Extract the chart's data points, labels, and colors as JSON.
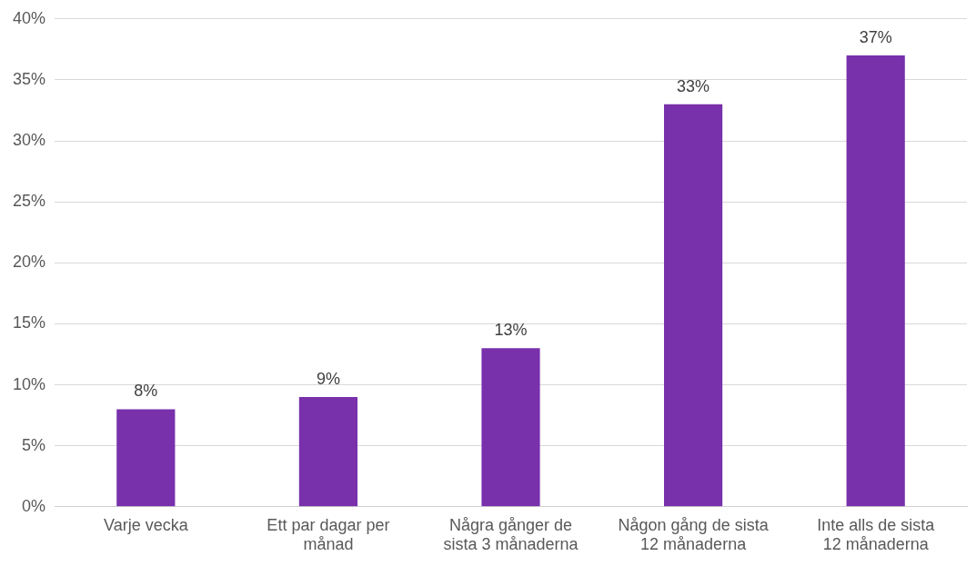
{
  "chart_data": {
    "type": "bar",
    "categories": [
      "Varje vecka",
      "Ett par dagar per månad",
      "Några gånger de sista 3 månaderna",
      "Någon gång de sista 12 månaderna",
      "Inte alls de sista 12 månaderna"
    ],
    "values": [
      8,
      9,
      13,
      33,
      37
    ],
    "color": "#7830ab",
    "ylim": [
      0,
      40
    ],
    "yticks": [
      {
        "value": 0,
        "label": "0%"
      },
      {
        "value": 5,
        "label": "5%"
      },
      {
        "value": 10,
        "label": "10%"
      },
      {
        "value": 15,
        "label": "15%"
      },
      {
        "value": 20,
        "label": "20%"
      },
      {
        "value": 25,
        "label": "25%"
      },
      {
        "value": 30,
        "label": "30%"
      },
      {
        "value": 35,
        "label": "35%"
      },
      {
        "value": 40,
        "label": "40%"
      }
    ],
    "value_labels": [
      "8%",
      "9%",
      "13%",
      "33%",
      "37%"
    ],
    "grid": "y",
    "legend": false
  }
}
